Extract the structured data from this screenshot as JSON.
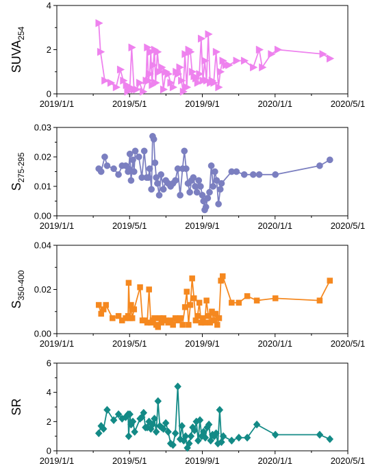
{
  "chart_data": [
    {
      "type": "line",
      "ylabel_main": "SUVA",
      "ylabel_sub": "254",
      "color": "#ee82ee",
      "marker": "triangle-right",
      "x_ticks": [
        "2019/1/1",
        "2019/5/1",
        "2019/9/1",
        "2020/1/1",
        "2020/5/1"
      ],
      "x_range": [
        "2019-01-01",
        "2020-05-01"
      ],
      "ylim": [
        0,
        4
      ],
      "y_ticks": [
        "0",
        "2",
        "4"
      ],
      "series": [
        {
          "x": [
            "2019-03-12",
            "2019-03-15",
            "2019-03-22",
            "2019-04-01",
            "2019-04-10",
            "2019-04-17",
            "2019-04-22",
            "2019-04-27",
            "2019-04-29",
            "2019-05-01",
            "2019-05-03",
            "2019-05-06",
            "2019-05-10",
            "2019-05-14",
            "2019-05-19",
            "2019-05-25",
            "2019-05-30",
            "2019-06-01",
            "2019-06-03",
            "2019-06-05",
            "2019-06-07",
            "2019-06-09",
            "2019-06-11",
            "2019-06-13",
            "2019-06-15",
            "2019-06-18",
            "2019-06-21",
            "2019-06-25",
            "2019-06-28",
            "2019-07-02",
            "2019-07-06",
            "2019-07-10",
            "2019-07-14",
            "2019-07-19",
            "2019-07-22",
            "2019-07-25",
            "2019-07-28",
            "2019-07-31",
            "2019-08-03",
            "2019-08-06",
            "2019-08-09",
            "2019-08-12",
            "2019-08-15",
            "2019-08-18",
            "2019-08-21",
            "2019-08-24",
            "2019-08-27",
            "2019-08-30",
            "2019-09-02",
            "2019-09-05",
            "2019-09-08",
            "2019-09-11",
            "2019-09-14",
            "2019-09-17",
            "2019-09-20",
            "2019-09-24",
            "2019-09-28",
            "2019-10-01",
            "2019-10-05",
            "2019-10-10",
            "2019-10-15",
            "2019-10-28",
            "2019-11-10",
            "2019-11-25",
            "2019-12-05",
            "2019-12-10",
            "2019-12-25",
            "2020-01-05",
            "2020-03-20",
            "2020-04-01"
          ],
          "y": [
            3.2,
            1.9,
            0.6,
            0.5,
            0.3,
            1.1,
            0.6,
            0.4,
            0.1,
            0.2,
            0.3,
            2.1,
            0.2,
            0.2,
            0.5,
            0.1,
            0.6,
            2.1,
            0.6,
            0.9,
            1.9,
            0.4,
            1.3,
            2.0,
            0.5,
            1.9,
            1.0,
            1.2,
            0.2,
            1.0,
            0.9,
            0.5,
            0.3,
            1.0,
            0.9,
            1.2,
            0.6,
            0.1,
            1.8,
            0.3,
            2.0,
            1.9,
            1.0,
            0.8,
            0.7,
            0.5,
            0.9,
            2.5,
            0.6,
            1.5,
            0.6,
            2.7,
            0.5,
            0.6,
            0.5,
            1.9,
            0.3,
            1.0,
            1.5,
            1.3,
            1.3,
            1.5,
            1.5,
            1.2,
            2.0,
            1.2,
            1.8,
            2.0,
            1.8,
            1.6
          ]
        }
      ]
    },
    {
      "type": "line",
      "ylabel_main": "S",
      "ylabel_sub": "275-295",
      "color": "#7b7fc0",
      "marker": "circle",
      "x_ticks": [
        "2019/1/1",
        "2019/5/1",
        "2019/9/1",
        "2020/1/1",
        "2020/5/1"
      ],
      "x_range": [
        "2019-01-01",
        "2020-05-01"
      ],
      "ylim": [
        0,
        0.03
      ],
      "y_ticks": [
        "0.00",
        "0.01",
        "0.02",
        "0.03"
      ],
      "series": [
        {
          "x": [
            "2019-03-12",
            "2019-03-16",
            "2019-03-22",
            "2019-03-26",
            "2019-04-06",
            "2019-04-14",
            "2019-04-20",
            "2019-04-26",
            "2019-04-30",
            "2019-05-01",
            "2019-05-03",
            "2019-05-05",
            "2019-05-08",
            "2019-05-10",
            "2019-05-12",
            "2019-05-18",
            "2019-05-23",
            "2019-05-27",
            "2019-05-31",
            "2019-06-03",
            "2019-06-05",
            "2019-06-08",
            "2019-06-10",
            "2019-06-12",
            "2019-06-14",
            "2019-06-16",
            "2019-06-18",
            "2019-06-21",
            "2019-06-24",
            "2019-06-28",
            "2019-07-02",
            "2019-07-06",
            "2019-07-10",
            "2019-07-14",
            "2019-07-18",
            "2019-07-22",
            "2019-07-26",
            "2019-07-30",
            "2019-08-02",
            "2019-08-05",
            "2019-08-08",
            "2019-08-11",
            "2019-08-14",
            "2019-08-17",
            "2019-08-20",
            "2019-08-23",
            "2019-08-26",
            "2019-08-29",
            "2019-09-01",
            "2019-09-03",
            "2019-09-05",
            "2019-09-07",
            "2019-09-10",
            "2019-09-13",
            "2019-09-16",
            "2019-09-19",
            "2019-09-22",
            "2019-09-25",
            "2019-09-28",
            "2019-10-01",
            "2019-10-03",
            "2019-10-20",
            "2019-10-28",
            "2019-11-10",
            "2019-11-25",
            "2019-12-05",
            "2020-01-01",
            "2020-03-15",
            "2020-04-01"
          ],
          "y": [
            0.016,
            0.015,
            0.02,
            0.017,
            0.016,
            0.014,
            0.017,
            0.017,
            0.015,
            0.016,
            0.021,
            0.012,
            0.019,
            0.015,
            0.022,
            0.02,
            0.013,
            0.022,
            0.013,
            0.013,
            0.016,
            0.009,
            0.027,
            0.026,
            0.018,
            0.013,
            0.011,
            0.007,
            0.014,
            0.009,
            0.012,
            0.011,
            0.01,
            0.011,
            0.012,
            0.016,
            0.007,
            0.016,
            0.022,
            0.016,
            0.011,
            0.008,
            0.012,
            0.013,
            0.01,
            0.008,
            0.012,
            0.01,
            0.007,
            0.005,
            0.002,
            0.003,
            0.006,
            0.008,
            0.017,
            0.01,
            0.015,
            0.012,
            0.004,
            0.009,
            0.011,
            0.015,
            0.015,
            0.014,
            0.014,
            0.014,
            0.014,
            0.017,
            0.019
          ]
        }
      ]
    },
    {
      "type": "line",
      "ylabel_main": "S",
      "ylabel_sub": "350-400",
      "color": "#f5881f",
      "marker": "square",
      "x_ticks": [
        "2019/1/1",
        "2019/5/1",
        "2019/9/1",
        "2020/1/1",
        "2020/5/1"
      ],
      "x_range": [
        "2019-01-01",
        "2020-05-01"
      ],
      "ylim": [
        0,
        0.04
      ],
      "y_ticks": [
        "0.00",
        "0.02",
        "0.04"
      ],
      "series": [
        {
          "x": [
            "2019-03-12",
            "2019-03-16",
            "2019-03-20",
            "2019-03-24",
            "2019-04-04",
            "2019-04-14",
            "2019-04-20",
            "2019-04-26",
            "2019-04-30",
            "2019-05-01",
            "2019-05-03",
            "2019-05-05",
            "2019-05-07",
            "2019-05-10",
            "2019-05-20",
            "2019-05-24",
            "2019-05-28",
            "2019-06-01",
            "2019-06-04",
            "2019-06-07",
            "2019-06-10",
            "2019-06-13",
            "2019-06-16",
            "2019-06-19",
            "2019-06-22",
            "2019-06-25",
            "2019-06-28",
            "2019-07-02",
            "2019-07-06",
            "2019-07-10",
            "2019-07-14",
            "2019-07-18",
            "2019-07-22",
            "2019-07-26",
            "2019-07-30",
            "2019-08-03",
            "2019-08-06",
            "2019-08-09",
            "2019-08-12",
            "2019-08-15",
            "2019-08-18",
            "2019-08-21",
            "2019-08-24",
            "2019-08-27",
            "2019-08-30",
            "2019-09-02",
            "2019-09-05",
            "2019-09-08",
            "2019-09-11",
            "2019-09-14",
            "2019-09-17",
            "2019-09-20",
            "2019-09-23",
            "2019-09-26",
            "2019-09-29",
            "2019-10-02",
            "2019-10-05",
            "2019-10-20",
            "2019-11-01",
            "2019-11-15",
            "2019-12-01",
            "2020-01-01",
            "2020-03-15",
            "2020-04-01"
          ],
          "y": [
            0.013,
            0.009,
            0.011,
            0.013,
            0.007,
            0.008,
            0.006,
            0.007,
            0.008,
            0.023,
            0.007,
            0.013,
            0.007,
            0.011,
            0.021,
            0.006,
            0.006,
            0.005,
            0.02,
            0.005,
            0.006,
            0.007,
            0.004,
            0.003,
            0.007,
            0.005,
            0.007,
            0.006,
            0.005,
            0.006,
            0.004,
            0.007,
            0.006,
            0.007,
            0.004,
            0.012,
            0.019,
            0.004,
            0.013,
            0.025,
            0.016,
            0.006,
            0.008,
            0.014,
            0.005,
            0.007,
            0.005,
            0.015,
            0.008,
            0.005,
            0.01,
            0.006,
            0.009,
            0.004,
            0.007,
            0.024,
            0.026,
            0.014,
            0.014,
            0.017,
            0.015,
            0.016,
            0.015,
            0.024
          ]
        }
      ]
    },
    {
      "type": "line",
      "ylabel_main": "SR",
      "ylabel_sub": "",
      "color": "#138a86",
      "marker": "diamond",
      "x_ticks": [
        "2019/1/1",
        "2019/5/1",
        "2019/9/1",
        "2020/1/1",
        "2020/5/1"
      ],
      "x_range": [
        "2019-01-01",
        "2020-05-01"
      ],
      "ylim": [
        0,
        6
      ],
      "y_ticks": [
        "0",
        "2",
        "4",
        "6"
      ],
      "series": [
        {
          "x": [
            "2019-03-12",
            "2019-03-16",
            "2019-03-20",
            "2019-03-26",
            "2019-04-06",
            "2019-04-14",
            "2019-04-20",
            "2019-04-26",
            "2019-04-30",
            "2019-05-01",
            "2019-05-03",
            "2019-05-05",
            "2019-05-08",
            "2019-05-11",
            "2019-05-20",
            "2019-05-23",
            "2019-05-26",
            "2019-05-29",
            "2019-06-01",
            "2019-06-04",
            "2019-06-07",
            "2019-06-10",
            "2019-06-13",
            "2019-06-16",
            "2019-06-19",
            "2019-06-22",
            "2019-06-25",
            "2019-06-28",
            "2019-07-02",
            "2019-07-06",
            "2019-07-10",
            "2019-07-14",
            "2019-07-18",
            "2019-07-22",
            "2019-07-26",
            "2019-07-29",
            "2019-08-01",
            "2019-08-04",
            "2019-08-07",
            "2019-08-10",
            "2019-08-13",
            "2019-08-16",
            "2019-08-19",
            "2019-08-22",
            "2019-08-25",
            "2019-08-28",
            "2019-08-31",
            "2019-09-03",
            "2019-09-06",
            "2019-09-09",
            "2019-09-12",
            "2019-09-15",
            "2019-09-18",
            "2019-09-21",
            "2019-09-24",
            "2019-09-27",
            "2019-09-30",
            "2019-10-03",
            "2019-10-06",
            "2019-10-20",
            "2019-11-01",
            "2019-11-15",
            "2019-12-01",
            "2020-01-01",
            "2020-03-15",
            "2020-04-01"
          ],
          "y": [
            1.2,
            1.7,
            1.5,
            2.8,
            2.1,
            2.5,
            2.2,
            2.3,
            2.5,
            1.0,
            2.5,
            1.8,
            2.0,
            1.3,
            2.2,
            2.3,
            2.6,
            1.6,
            1.6,
            2.0,
            1.5,
            1.8,
            2.2,
            1.3,
            3.4,
            1.7,
            1.6,
            1.5,
            1.9,
            1.3,
            0.5,
            0.4,
            1.2,
            4.4,
            0.8,
            1.7,
            0.7,
            1.0,
            0.2,
            0.5,
            1.0,
            1.6,
            1.4,
            2.0,
            0.7,
            2.1,
            1.0,
            1.3,
            0.9,
            1.6,
            1.8,
            0.7,
            1.1,
            1.0,
            1.2,
            0.5,
            2.8,
            0.6,
            1.0,
            0.7,
            0.9,
            0.9,
            1.8,
            1.1,
            1.1,
            0.8
          ]
        }
      ]
    }
  ]
}
